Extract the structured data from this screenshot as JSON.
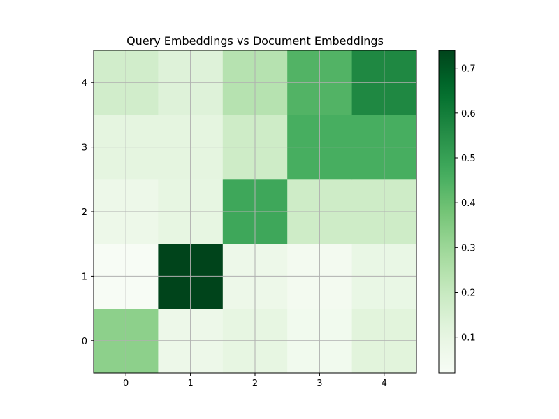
{
  "chart_data": {
    "type": "heatmap",
    "title": "Query Embeddings vs Document Embeddings",
    "xlabel": "",
    "ylabel": "",
    "x_ticks": [
      "0",
      "1",
      "2",
      "3",
      "4"
    ],
    "y_ticks": [
      "0",
      "1",
      "2",
      "3",
      "4"
    ],
    "y_origin": "bottom",
    "grid": true,
    "colormap": "Greens",
    "vmin": 0.02,
    "vmax": 0.74,
    "colorbar_ticks": [
      "0.1",
      "0.2",
      "0.3",
      "0.4",
      "0.5",
      "0.6",
      "0.7"
    ],
    "colorbar_tick_values": [
      0.1,
      0.2,
      0.3,
      0.4,
      0.5,
      0.6,
      0.7
    ],
    "values": [
      [
        0.33,
        0.07,
        0.1,
        0.05,
        0.12
      ],
      [
        0.02,
        0.74,
        0.07,
        0.04,
        0.09
      ],
      [
        0.07,
        0.1,
        0.48,
        0.18,
        0.18
      ],
      [
        0.11,
        0.11,
        0.18,
        0.46,
        0.46
      ],
      [
        0.17,
        0.13,
        0.24,
        0.44,
        0.57
      ]
    ]
  }
}
